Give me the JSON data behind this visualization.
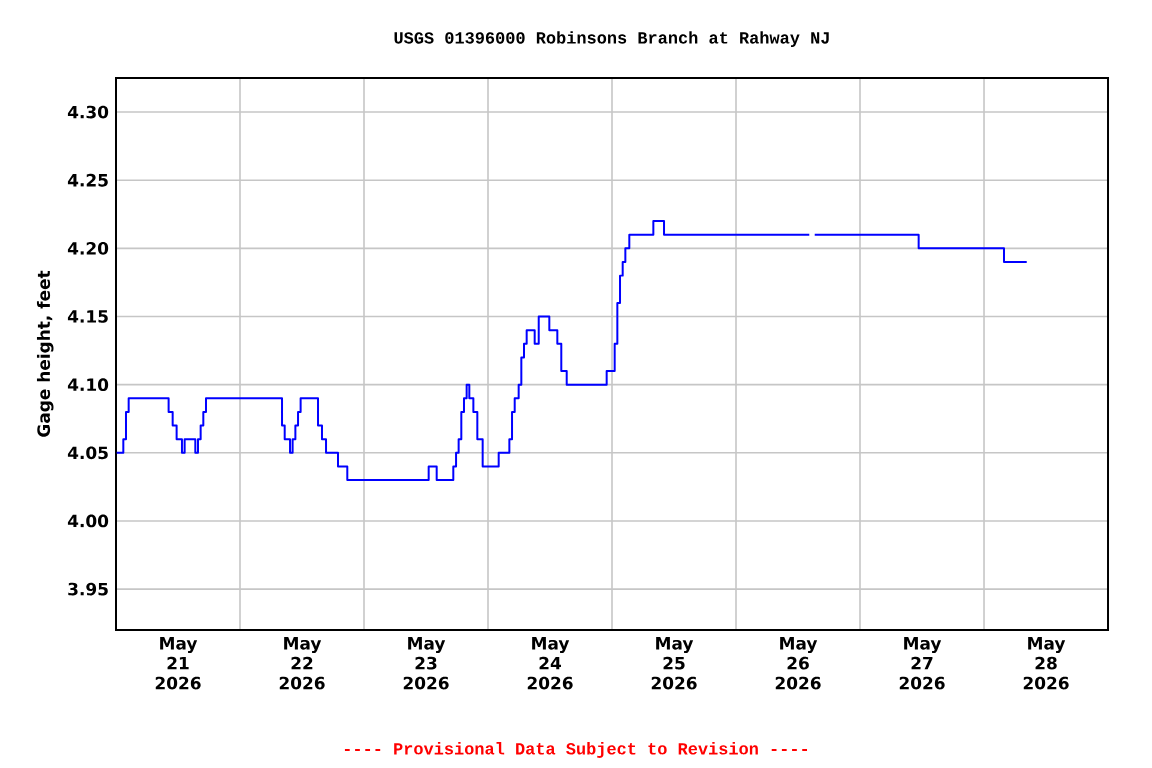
{
  "chart_data": {
    "type": "step",
    "title": "USGS 01396000 Robinsons Branch at Rahway NJ",
    "ylabel": "Gage height, feet",
    "annotations": [
      "---- Provisional Data Subject to Revision ----"
    ],
    "grid": true,
    "xlim": [
      "2026-05-21T00:00",
      "2026-05-29T00:00"
    ],
    "ylim": [
      3.92,
      4.325
    ],
    "yticks": [
      {
        "value": 3.95,
        "label": "3.95"
      },
      {
        "value": 4.0,
        "label": "4.00"
      },
      {
        "value": 4.05,
        "label": "4.05"
      },
      {
        "value": 4.1,
        "label": "4.10"
      },
      {
        "value": 4.15,
        "label": "4.15"
      },
      {
        "value": 4.2,
        "label": "4.20"
      },
      {
        "value": 4.25,
        "label": "4.25"
      },
      {
        "value": 4.3,
        "label": "4.30"
      }
    ],
    "xticks": [
      {
        "value": "2026-05-22T00:00",
        "label": null
      },
      {
        "value": "2026-05-23T00:00",
        "label": null
      },
      {
        "value": "2026-05-24T00:00",
        "label": null
      },
      {
        "value": "2026-05-25T00:00",
        "label": null
      },
      {
        "value": "2026-05-26T00:00",
        "label": null
      },
      {
        "value": "2026-05-27T00:00",
        "label": null
      },
      {
        "value": "2026-05-28T00:00",
        "label": null
      },
      {
        "value": "2026-05-21T12:00",
        "label": "May 21 2026"
      },
      {
        "value": "2026-05-22T12:00",
        "label": "May 22 2026"
      },
      {
        "value": "2026-05-23T12:00",
        "label": "May 23 2026"
      },
      {
        "value": "2026-05-24T12:00",
        "label": "May 24 2026"
      },
      {
        "value": "2026-05-25T12:00",
        "label": "May 25 2026"
      },
      {
        "value": "2026-05-26T12:00",
        "label": "May 26 2026"
      },
      {
        "value": "2026-05-27T12:00",
        "label": "May 27 2026"
      },
      {
        "value": "2026-05-28T12:00",
        "label": "May 28 2026"
      }
    ],
    "x": [
      "2026-05-21T00:08",
      "2026-05-21T01:25",
      "2026-05-21T01:56",
      "2026-05-21T02:27",
      "2026-05-21T10:11",
      "2026-05-21T10:58",
      "2026-05-21T11:44",
      "2026-05-21T12:46",
      "2026-05-21T13:17",
      "2026-05-21T15:21",
      "2026-05-21T15:52",
      "2026-05-21T16:23",
      "2026-05-21T16:54",
      "2026-05-21T17:25",
      "2026-05-22T08:08",
      "2026-05-22T08:39",
      "2026-05-22T09:41",
      "2026-05-22T10:11",
      "2026-05-22T10:43",
      "2026-05-22T11:14",
      "2026-05-22T11:44",
      "2026-05-22T15:06",
      "2026-05-22T15:52",
      "2026-05-22T16:39",
      "2026-05-22T18:58",
      "2026-05-22T20:46",
      "2026-05-23T12:31",
      "2026-05-23T14:04",
      "2026-05-23T17:17",
      "2026-05-23T17:49",
      "2026-05-23T18:19",
      "2026-05-23T18:50",
      "2026-05-23T19:21",
      "2026-05-23T19:52",
      "2026-05-23T20:23",
      "2026-05-23T21:10",
      "2026-05-23T21:56",
      "2026-05-23T22:58",
      "2026-05-24T02:04",
      "2026-05-24T04:08",
      "2026-05-24T04:39",
      "2026-05-24T05:10",
      "2026-05-24T05:56",
      "2026-05-24T06:27",
      "2026-05-24T06:58",
      "2026-05-24T07:29",
      "2026-05-24T09:02",
      "2026-05-24T09:49",
      "2026-05-24T11:52",
      "2026-05-24T13:25",
      "2026-05-24T14:11",
      "2026-05-24T15:14",
      "2026-05-24T22:58",
      "2026-05-25T00:31",
      "2026-05-25T01:02",
      "2026-05-25T01:33",
      "2026-05-25T02:04",
      "2026-05-25T02:35",
      "2026-05-25T03:21",
      "2026-05-25T08:00",
      "2026-05-25T10:04",
      "2026-05-26T14:11",
      "2026-05-26T14:42",
      "2026-05-26T15:14",
      "2026-05-27T11:21",
      "2026-05-28T03:52",
      "2026-05-28T08:16"
    ],
    "series": [
      {
        "color": "#0000ff",
        "values": [
          4.05,
          4.06,
          4.08,
          4.09,
          4.08,
          4.07,
          4.06,
          4.05,
          4.06,
          4.05,
          4.06,
          4.07,
          4.08,
          4.09,
          4.07,
          4.06,
          4.05,
          4.06,
          4.07,
          4.08,
          4.09,
          4.07,
          4.06,
          4.05,
          4.04,
          4.03,
          4.04,
          4.03,
          4.04,
          4.05,
          4.06,
          4.08,
          4.09,
          4.1,
          4.09,
          4.08,
          4.06,
          4.04,
          4.05,
          4.06,
          4.08,
          4.09,
          4.1,
          4.12,
          4.13,
          4.14,
          4.13,
          4.15,
          4.14,
          4.13,
          4.11,
          4.1,
          4.11,
          4.13,
          4.16,
          4.18,
          4.19,
          4.2,
          4.21,
          4.22,
          4.21,
          4.21,
          null,
          4.21,
          4.2,
          4.19,
          4.19
        ]
      }
    ]
  }
}
